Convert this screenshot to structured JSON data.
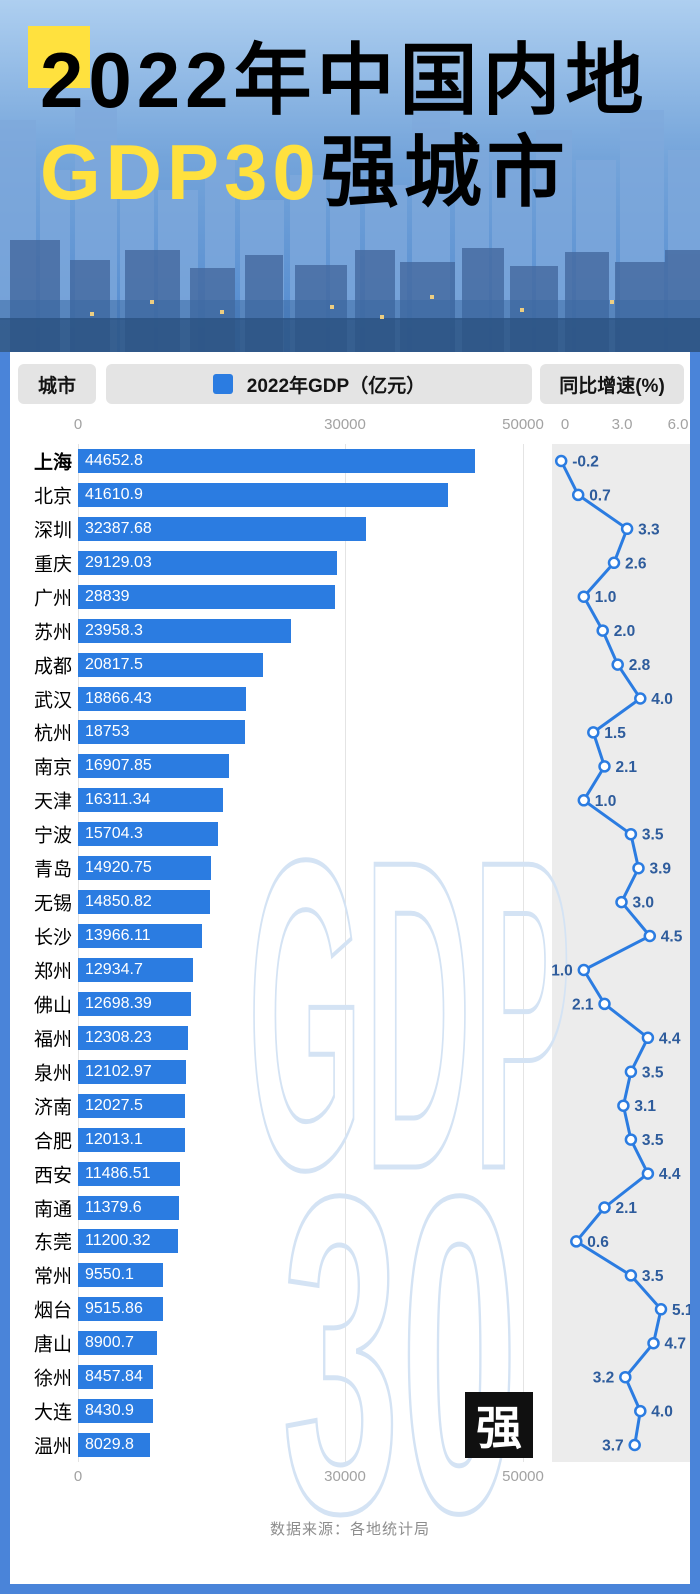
{
  "colors": {
    "bar_blue": "#2b7ce1",
    "highlight_yellow": "#ffe13e",
    "frame_blue": "#4a84d9",
    "watermark_outline": "#d4e3f4",
    "growth_label": "#2e5c9c",
    "header_pill_gray": "#e4e4e4",
    "band_gray": "#ececec"
  },
  "header": {
    "title_line1": "2022年中国内地",
    "title_line2_highlight": "GDP30",
    "title_line2_rest": "强城市"
  },
  "table_header": {
    "city": "城市",
    "gdp": "2022年GDP（亿元）",
    "growth": "同比增速(%)"
  },
  "axes": {
    "gdp_ticks": [
      "0",
      "30000",
      "50000"
    ],
    "growth_ticks": [
      "0",
      "3.0",
      "6.0"
    ]
  },
  "watermark": {
    "line1": "GDP",
    "line2": "30",
    "badge": "强"
  },
  "footer": {
    "source": "数据来源：各地统计局"
  },
  "chart_data": {
    "type": "bar",
    "orientation": "horizontal",
    "title": "2022年中国内地GDP30强城市",
    "categories": [
      "上海",
      "北京",
      "深圳",
      "重庆",
      "广州",
      "苏州",
      "成都",
      "武汉",
      "杭州",
      "南京",
      "天津",
      "宁波",
      "青岛",
      "无锡",
      "长沙",
      "郑州",
      "佛山",
      "福州",
      "泉州",
      "济南",
      "合肥",
      "西安",
      "南通",
      "东莞",
      "常州",
      "烟台",
      "唐山",
      "徐州",
      "大连",
      "温州"
    ],
    "series": [
      {
        "name": "2022年GDP（亿元）",
        "type": "bar",
        "color": "#2b7ce1",
        "values": [
          44652.8,
          41610.9,
          32387.68,
          29129.03,
          28839,
          23958.3,
          20817.5,
          18866.43,
          18753,
          16907.85,
          16311.34,
          15704.3,
          14920.75,
          14850.82,
          13966.11,
          12934.7,
          12698.39,
          12308.23,
          12102.97,
          12027.5,
          12013.1,
          11486.51,
          11379.6,
          11200.32,
          9550.1,
          9515.86,
          8900.7,
          8457.84,
          8430.9,
          8029.8
        ]
      },
      {
        "name": "同比增速(%)",
        "type": "line",
        "color": "#2b7ce1",
        "values": [
          -0.2,
          0.7,
          3.3,
          2.6,
          1.0,
          2.0,
          2.8,
          4.0,
          1.5,
          2.1,
          1.0,
          3.5,
          3.9,
          3.0,
          4.5,
          1.0,
          2.1,
          4.4,
          3.5,
          3.1,
          3.5,
          4.4,
          2.1,
          0.6,
          3.5,
          5.1,
          4.7,
          3.2,
          4.0,
          3.7
        ]
      }
    ],
    "gdp_labels": [
      "44652.8",
      "41610.9",
      "32387.68",
      "29129.03",
      "28839",
      "23958.3",
      "20817.5",
      "18866.43",
      "18753",
      "16907.85",
      "16311.34",
      "15704.3",
      "14920.75",
      "14850.82",
      "13966.11",
      "12934.7",
      "12698.39",
      "12308.23",
      "12102.97",
      "12027.5",
      "12013.1",
      "11486.51",
      "11379.6",
      "11200.32",
      "9550.1",
      "9515.86",
      "8900.7",
      "8457.84",
      "8430.9",
      "8029.8"
    ],
    "growth_labels": [
      "-0.2",
      "0.7",
      "3.3",
      "2.6",
      "1.0",
      "2.0",
      "2.8",
      "4.0",
      "1.5",
      "2.1",
      "1.0",
      "3.5",
      "3.9",
      "3.0",
      "4.5",
      "1.0",
      "2.1",
      "4.4",
      "3.5",
      "3.1",
      "3.5",
      "4.4",
      "2.1",
      "0.6",
      "3.5",
      "5.1",
      "4.7",
      "3.2",
      "4.0",
      "3.7"
    ],
    "growth_label_side": [
      "right",
      "right",
      "right",
      "right",
      "right",
      "right",
      "right",
      "right",
      "right",
      "right",
      "right",
      "right",
      "right",
      "right",
      "right",
      "left",
      "left",
      "right",
      "right",
      "right",
      "right",
      "right",
      "right",
      "right",
      "right",
      "right",
      "right",
      "left",
      "right",
      "left"
    ],
    "gdp_axis": {
      "ticks": [
        0,
        30000,
        50000
      ],
      "max": 50000
    },
    "growth_axis": {
      "ticks": [
        0,
        3.0,
        6.0
      ],
      "min": -0.6,
      "max": 6.6
    },
    "legend_position": "header",
    "grid": "vertical"
  }
}
